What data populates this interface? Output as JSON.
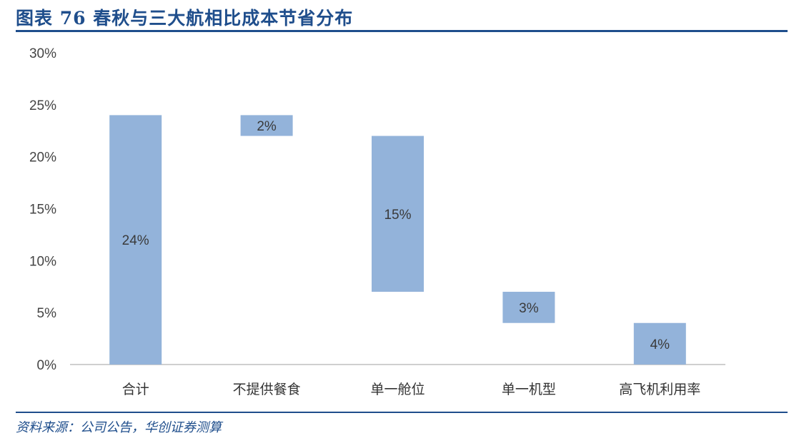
{
  "title": "图表 76 春秋与三大航相比成本节省分布",
  "source": "资料来源：公司公告，华创证券测算",
  "colors": {
    "bar": "#93b3da",
    "accent": "#1f4e8c",
    "axis": "#bfbfbf"
  },
  "chart_data": {
    "type": "bar",
    "subtype": "waterfall",
    "categories": [
      "合计",
      "不提供餐食",
      "单一舱位",
      "单一机型",
      "高飞机利用率"
    ],
    "values": [
      24,
      2,
      15,
      3,
      4
    ],
    "ranges": [
      [
        0,
        24
      ],
      [
        22,
        24
      ],
      [
        7,
        22
      ],
      [
        4,
        7
      ],
      [
        0,
        4
      ]
    ],
    "data_labels": [
      "24%",
      "2%",
      "15%",
      "3%",
      "4%"
    ],
    "ylim": [
      0,
      30
    ],
    "yticks": [
      0,
      5,
      10,
      15,
      20,
      25,
      30
    ],
    "ytick_labels": [
      "0%",
      "5%",
      "10%",
      "15%",
      "20%",
      "25%",
      "30%"
    ],
    "grid": false,
    "legend": "none"
  }
}
